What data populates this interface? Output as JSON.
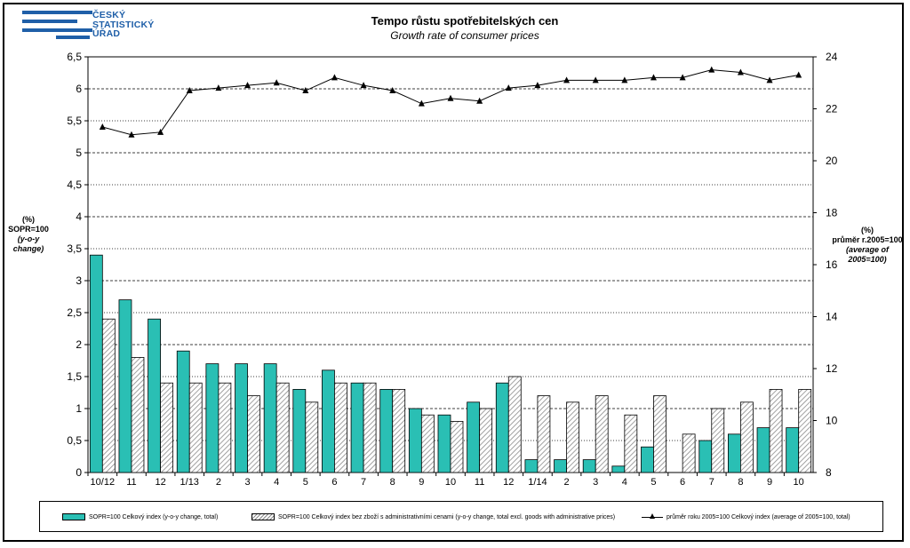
{
  "logo": {
    "lines": [
      "ČESKÝ",
      "STATISTICKÝ",
      "ÚŘAD"
    ]
  },
  "header": {
    "title_cz": "Tempo růstu spotřebitelských  cen",
    "title_en": "Growth rate of consumer  prices"
  },
  "left_axis": {
    "line1": "(%)",
    "line2": "SOPR=100",
    "line3": "(y-o-y change)"
  },
  "right_axis": {
    "line1": "(%)",
    "line2": "průměr r.2005=100",
    "line3": "(average of 2005=100)"
  },
  "chart_data": {
    "type": "bar",
    "categories": [
      "10/12",
      "11",
      "12",
      "1/13",
      "2",
      "3",
      "4",
      "5",
      "6",
      "7",
      "8",
      "9",
      "10",
      "11",
      "12",
      "1/14",
      "2",
      "3",
      "4",
      "5",
      "6",
      "7",
      "8",
      "9",
      "10"
    ],
    "series": [
      {
        "name": "SOPR=100  Celkový  index  (y-o-y change,  total)",
        "type": "bar",
        "axis": "left",
        "color": "#2abfb4",
        "values": [
          3.4,
          2.7,
          2.4,
          1.9,
          1.7,
          1.7,
          1.7,
          1.3,
          1.6,
          1.4,
          1.3,
          1.0,
          0.9,
          1.1,
          1.4,
          0.2,
          0.2,
          0.2,
          0.1,
          0.4,
          0.0,
          0.5,
          0.6,
          0.7,
          0.7
        ]
      },
      {
        "name": "SOPR=100  Celkový  index  bez  zboží  s  administrativními  cenami  (y-o-y change,  total  excl.  goods  with administrative  prices)",
        "type": "bar",
        "axis": "left",
        "pattern": "hatched",
        "values": [
          2.4,
          1.8,
          1.4,
          1.4,
          1.4,
          1.2,
          1.4,
          1.1,
          1.4,
          1.4,
          1.3,
          0.9,
          0.8,
          1.0,
          1.5,
          1.2,
          1.1,
          1.2,
          0.9,
          1.2,
          0.6,
          1.0,
          1.1,
          1.3,
          1.3
        ]
      },
      {
        "name": "průměr  roku  2005=100   Celkový  index  (average  of  2005=100,  total)",
        "type": "line",
        "axis": "right",
        "marker": "triangle",
        "color": "#000000",
        "values": [
          21.3,
          21.0,
          21.1,
          22.7,
          22.8,
          22.9,
          23.0,
          22.7,
          23.2,
          22.9,
          22.7,
          22.2,
          22.4,
          22.3,
          22.8,
          22.9,
          23.1,
          23.1,
          23.1,
          23.2,
          23.2,
          23.5,
          23.4,
          23.1,
          23.3
        ]
      }
    ],
    "y_left": {
      "min": 0,
      "max": 6.5,
      "step": 0.5,
      "ticks": [
        "0",
        "0,5",
        "1",
        "1,5",
        "2",
        "2,5",
        "3",
        "3,5",
        "4",
        "4,5",
        "5",
        "5,5",
        "6",
        "6,5"
      ]
    },
    "y_right": {
      "min": 8,
      "max": 24,
      "step": 2,
      "ticks": [
        "8",
        "10",
        "12",
        "14",
        "16",
        "18",
        "20",
        "22",
        "24"
      ]
    },
    "grid": "horizontal-dashed",
    "legend": "bottom"
  }
}
